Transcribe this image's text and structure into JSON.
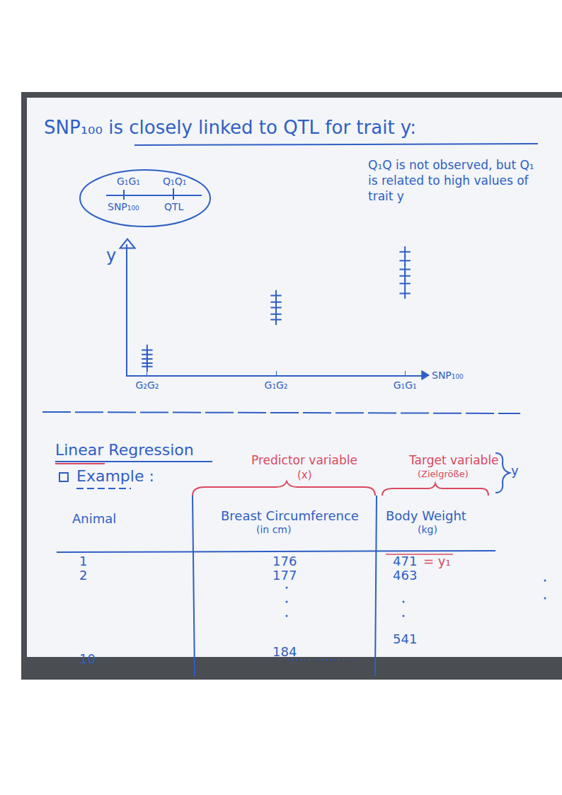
{
  "heading": "SNP₁₀₀ is closely linked to QTL for trait y:",
  "locus": {
    "alleles": [
      "G₁G₁",
      "Q₁Q₁"
    ],
    "labels": [
      "SNP₁₀₀",
      "QTL"
    ]
  },
  "note": "Q₁Q is not observed, but Q₁ is related to high values of trait y",
  "chart_data": {
    "type": "scatter",
    "x_label": "SNP₁₀₀",
    "y_label": "y",
    "categories": [
      "G₂G₂",
      "G₁G₂",
      "G₁G₁"
    ],
    "values": [
      [
        2.3,
        1.9,
        1.5,
        1.1,
        0.8
      ],
      [
        7.3,
        6.7,
        6.2,
        5.6,
        5.1
      ],
      [
        11.3,
        10.5,
        9.7,
        9.1,
        8.4,
        7.5
      ]
    ],
    "color": "#2f5fc4",
    "marker": "cross",
    "ylim": [
      0,
      12
    ],
    "yticks": [],
    "tick_labels": "x",
    "grid": false
  },
  "section": {
    "title": "Linear Regression",
    "example": "Example :"
  },
  "labels": {
    "predictor": "Predictor variable",
    "predictor_symbol": "(x)",
    "target": "Target variable",
    "target_german": "(Zielgröße)",
    "target_symbol": "y"
  },
  "table": {
    "columns": [
      {
        "name": "Animal"
      },
      {
        "name": "Breast Circumference",
        "unit": "(in cm)"
      },
      {
        "name": "Body Weight",
        "unit": "(kg)"
      }
    ],
    "rows": [
      [
        1,
        176,
        471
      ],
      [
        2,
        177,
        463
      ],
      [
        10,
        184,
        541
      ]
    ],
    "first_value_note": "= y₁"
  }
}
